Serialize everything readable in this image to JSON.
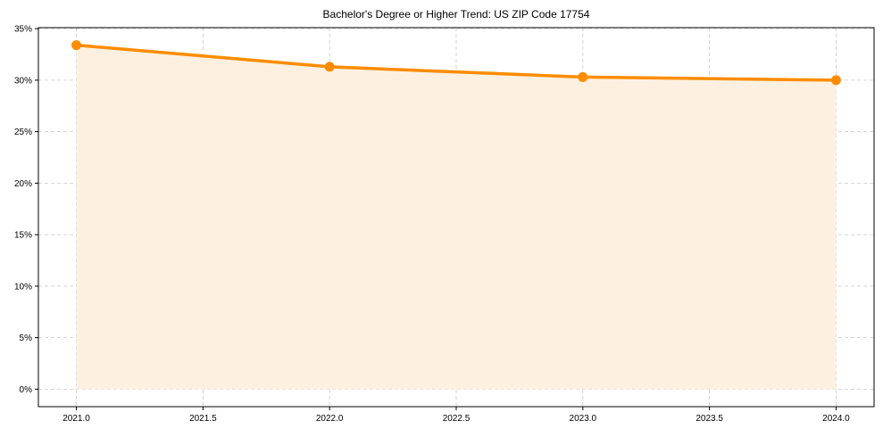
{
  "chart_data": {
    "type": "area",
    "title": "Bachelor's Degree or Higher Trend: US ZIP Code 17754",
    "xlabel": "",
    "ylabel": "",
    "x": [
      2021,
      2022,
      2023,
      2024
    ],
    "series": [
      {
        "name": "Bachelor's Degree or Higher",
        "values": [
          33.4,
          31.3,
          30.3,
          30.0
        ],
        "unit": "%",
        "color": "#ff8c00",
        "fill_color": "#fdf0e1",
        "marker": "circle"
      }
    ],
    "xlim": [
      2020.85,
      2024.15
    ],
    "ylim": [
      -1.7,
      35.1
    ],
    "x_ticks": [
      2021.0,
      2021.5,
      2022.0,
      2022.5,
      2023.0,
      2023.5,
      2024.0
    ],
    "x_tick_labels": [
      "2021.0",
      "2021.5",
      "2022.0",
      "2022.5",
      "2023.0",
      "2023.5",
      "2024.0"
    ],
    "y_ticks": [
      0,
      5,
      10,
      15,
      20,
      25,
      30,
      35
    ],
    "y_tick_labels": [
      "0%",
      "5%",
      "10%",
      "15%",
      "20%",
      "25%",
      "30%",
      "35%"
    ],
    "grid": true,
    "grid_style": "dashed",
    "legend": false
  }
}
